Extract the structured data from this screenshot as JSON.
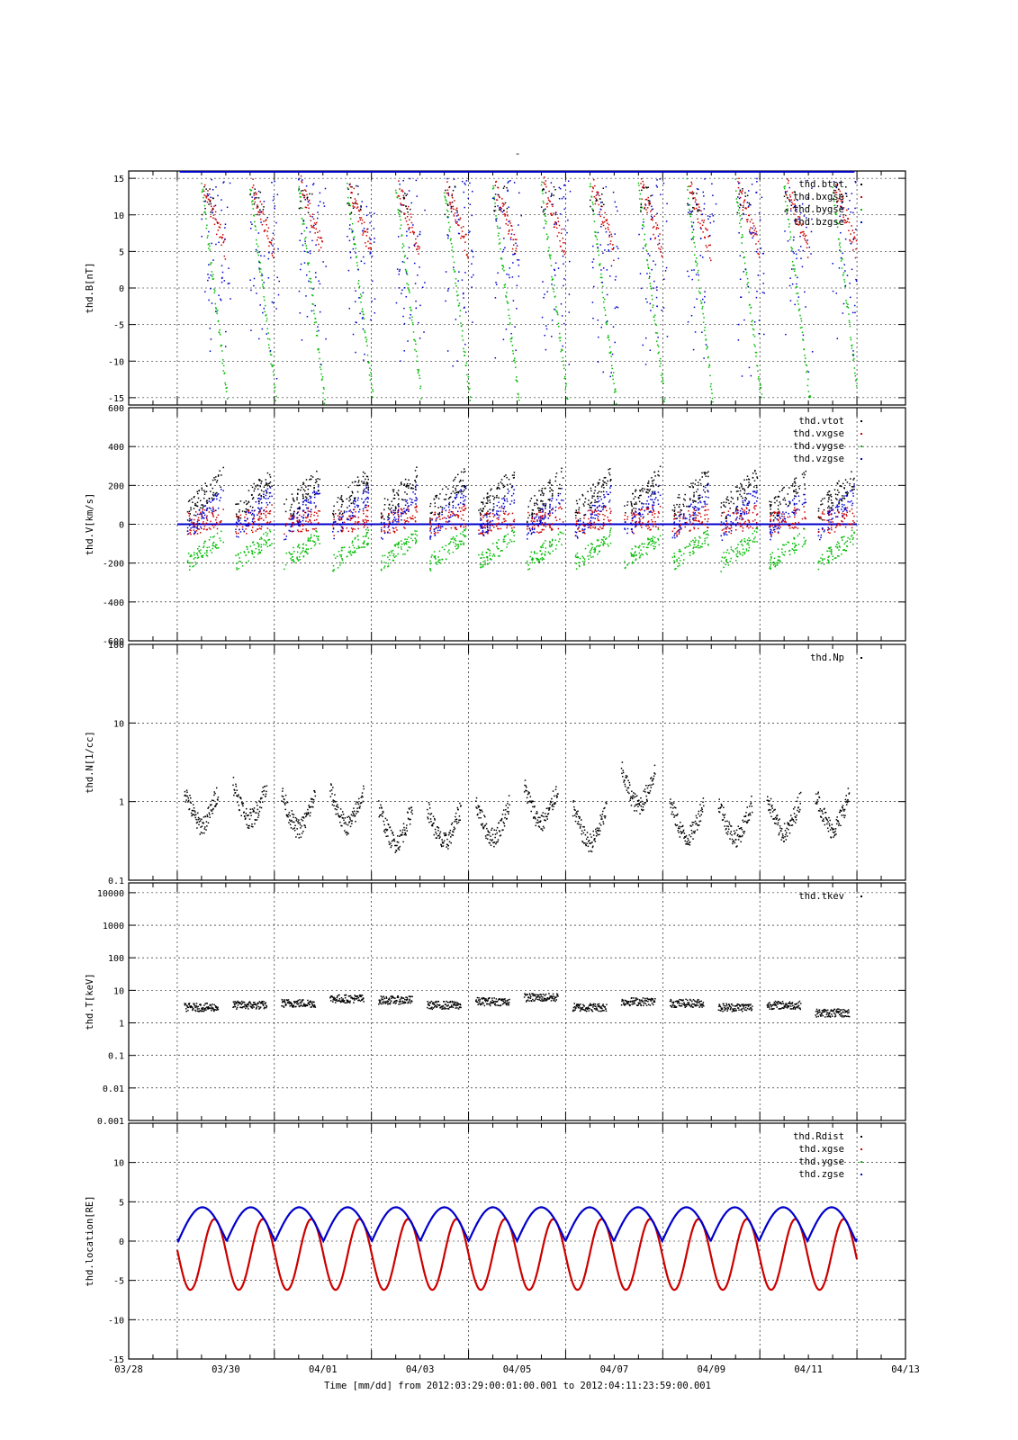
{
  "page_title": "-",
  "colors": {
    "total": "#000000",
    "x": "#cc0000",
    "y": "#00bb00",
    "z": "#0000cc"
  },
  "time_axis": {
    "xlim_days": [
      -1,
      15
    ],
    "ticks": [
      "03/28",
      "03/30",
      "04/01",
      "04/03",
      "04/05",
      "04/07",
      "04/09",
      "04/11",
      "04/13"
    ],
    "xlabel": "Time [mm/dd]  from 2012:03:29:00:01:00.001  to  2012:04:11:23:59:00.001"
  },
  "chart_data": [
    {
      "type": "scatter",
      "ylabel": "thd.B[nT]",
      "ylim": [
        -16,
        16
      ],
      "scale": "linear",
      "yticks": [
        15,
        10,
        5,
        0,
        -5,
        -10,
        -15
      ],
      "legend_position": "top-right",
      "series": [
        {
          "name": "thd.btot",
          "color": "#000000"
        },
        {
          "name": "thd.bxgse",
          "color": "#cc0000"
        },
        {
          "name": "thd.bygse",
          "color": "#00bb00"
        },
        {
          "name": "thd.bzgse",
          "color": "#0000cc"
        }
      ],
      "orbit_starts_days": [
        0.5,
        1.5,
        2.5,
        3.5,
        4.5,
        5.5,
        6.5,
        7.5,
        8.5,
        9.5,
        10.5,
        11.5,
        12.5,
        13.5
      ]
    },
    {
      "type": "scatter",
      "ylabel": "thd.V[km/s]",
      "ylim": [
        -600,
        600
      ],
      "scale": "linear",
      "yticks": [
        600,
        400,
        200,
        0,
        -200,
        -400,
        -600
      ],
      "legend_position": "top-right",
      "series": [
        {
          "name": "thd.vtot",
          "color": "#000000"
        },
        {
          "name": "thd.vxgse",
          "color": "#cc0000"
        },
        {
          "name": "thd.vygse",
          "color": "#00bb00"
        },
        {
          "name": "thd.vzgse",
          "color": "#0000cc"
        }
      ]
    },
    {
      "type": "scatter",
      "ylabel": "thd.N[1/cc]",
      "ylim": [
        0.1,
        100
      ],
      "scale": "log",
      "yticks": [
        "100",
        "10",
        "1",
        "0.1"
      ],
      "legend_position": "top-right",
      "series": [
        {
          "name": "thd.Np",
          "color": "#000000",
          "segment_levels": [
            0.5,
            0.6,
            0.45,
            0.5,
            0.3,
            0.3,
            0.35,
            0.55,
            0.3,
            0.9,
            0.35,
            0.35,
            0.4,
            0.45,
            0.5
          ]
        }
      ]
    },
    {
      "type": "scatter",
      "ylabel": "thd.T[keV]",
      "ylim": [
        0.001,
        20000
      ],
      "scale": "log",
      "yticks": [
        "10000",
        "1000",
        "100",
        "10",
        "1",
        "0.1",
        "0.01",
        "0.001"
      ],
      "legend_position": "top-right",
      "series": [
        {
          "name": "thd.tkev",
          "color": "#000000",
          "segment_levels": [
            3,
            3.5,
            4,
            5.5,
            5,
            3.5,
            4.5,
            6,
            3,
            4.5,
            4,
            3,
            3.5,
            2
          ]
        }
      ]
    },
    {
      "type": "line",
      "ylabel": "thd.location[RE]",
      "ylim": [
        -15,
        15
      ],
      "scale": "linear",
      "yticks": [
        10,
        5,
        0,
        -5,
        -10,
        -15
      ],
      "legend_position": "top-right",
      "series": [
        {
          "name": "thd.Rdist",
          "color": "#000000",
          "min": 0.5,
          "max": 11.8
        },
        {
          "name": "thd.xgse",
          "color": "#cc0000",
          "min": -6.2,
          "max": 2.8
        },
        {
          "name": "thd.ygse",
          "color": "#00bb00",
          "min": -10.3,
          "max": 0.5
        },
        {
          "name": "thd.zgse",
          "color": "#0000cc",
          "min": 0,
          "max": 4.3
        }
      ],
      "orbit_period_days": 0.997
    }
  ]
}
